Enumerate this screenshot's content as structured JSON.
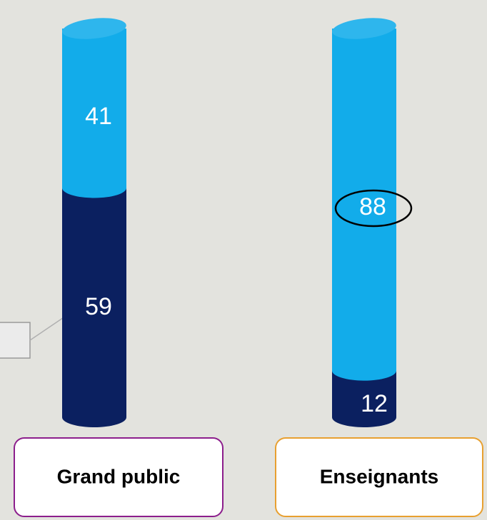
{
  "chart_data": {
    "type": "stacked_bar",
    "categories": [
      "Grand public",
      "Enseignants"
    ],
    "series": [
      {
        "color": "#0b2060",
        "values": [
          59,
          12
        ]
      },
      {
        "color": "#12acea",
        "values": [
          41,
          88
        ]
      }
    ]
  }
}
